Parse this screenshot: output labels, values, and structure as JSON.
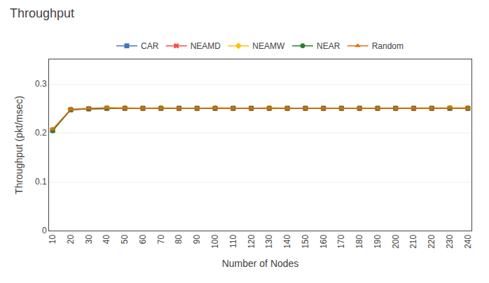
{
  "chart_data": {
    "type": "line",
    "title": "Throughput",
    "xlabel": "Number of Nodes",
    "ylabel": "Throughput (pkt/msec)",
    "x": [
      10,
      20,
      30,
      40,
      50,
      60,
      70,
      80,
      90,
      100,
      110,
      120,
      130,
      140,
      150,
      160,
      170,
      180,
      190,
      200,
      210,
      220,
      230,
      240
    ],
    "series": [
      {
        "name": "CAR",
        "color": "#4472C4",
        "marker": "square",
        "values": [
          0.205,
          0.247,
          0.249,
          0.25,
          0.25,
          0.25,
          0.25,
          0.25,
          0.25,
          0.25,
          0.25,
          0.25,
          0.25,
          0.25,
          0.25,
          0.25,
          0.25,
          0.25,
          0.25,
          0.25,
          0.25,
          0.25,
          0.25,
          0.25
        ]
      },
      {
        "name": "NEAMD",
        "color": "#FF4444",
        "marker": "x",
        "values": [
          0.206,
          0.247,
          0.249,
          0.25,
          0.25,
          0.25,
          0.25,
          0.25,
          0.25,
          0.25,
          0.25,
          0.25,
          0.25,
          0.25,
          0.25,
          0.25,
          0.25,
          0.25,
          0.25,
          0.25,
          0.25,
          0.25,
          0.25,
          0.25
        ]
      },
      {
        "name": "NEAMW",
        "color": "#FFC000",
        "marker": "diamond",
        "values": [
          0.206,
          0.248,
          0.249,
          0.251,
          0.251,
          0.25,
          0.251,
          0.25,
          0.25,
          0.251,
          0.25,
          0.25,
          0.251,
          0.25,
          0.25,
          0.25,
          0.25,
          0.25,
          0.25,
          0.25,
          0.25,
          0.25,
          0.251,
          0.251
        ]
      },
      {
        "name": "NEAR",
        "color": "#2E7D32",
        "marker": "circle",
        "values": [
          0.204,
          0.247,
          0.249,
          0.25,
          0.25,
          0.25,
          0.25,
          0.25,
          0.25,
          0.25,
          0.25,
          0.25,
          0.25,
          0.25,
          0.25,
          0.25,
          0.25,
          0.25,
          0.25,
          0.25,
          0.25,
          0.25,
          0.25,
          0.25
        ]
      },
      {
        "name": "Random",
        "color": "#E26B0A",
        "marker": "triangle-up",
        "values": [
          0.207,
          0.248,
          0.25,
          0.251,
          0.25,
          0.25,
          0.25,
          0.25,
          0.25,
          0.25,
          0.25,
          0.25,
          0.25,
          0.25,
          0.25,
          0.25,
          0.25,
          0.25,
          0.25,
          0.25,
          0.25,
          0.25,
          0.251,
          0.25
        ]
      }
    ],
    "xlim": [
      8,
      242
    ],
    "xticks": [
      10,
      20,
      30,
      40,
      50,
      60,
      70,
      80,
      90,
      100,
      110,
      120,
      130,
      140,
      150,
      160,
      170,
      180,
      190,
      200,
      210,
      220,
      230,
      240
    ],
    "ylim": [
      0,
      0.35
    ],
    "yticks": [
      0,
      0.1,
      0.2,
      0.3
    ],
    "grid": "y",
    "legend": "top"
  }
}
